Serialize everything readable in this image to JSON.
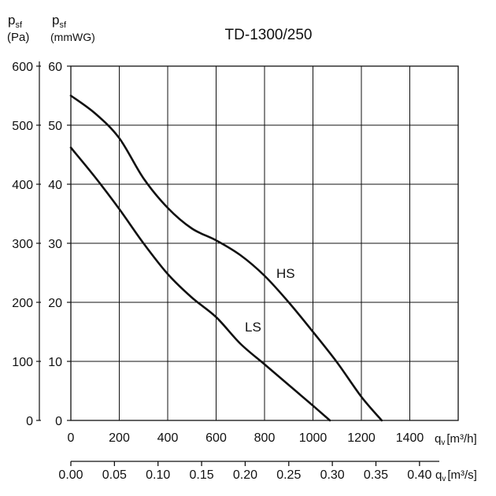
{
  "chart_data": {
    "type": "line",
    "title": "TD-1300/250",
    "y_axes": {
      "left_pa": {
        "label_main": "p",
        "label_sub": "sf",
        "unit": "(Pa)",
        "range": [
          0,
          600
        ],
        "ticks": [
          0,
          100,
          200,
          300,
          400,
          500,
          600
        ],
        "tick_labels": [
          "0",
          "100",
          "200",
          "300",
          "400",
          "500",
          "600"
        ]
      },
      "left_mmwg": {
        "label_main": "p",
        "label_sub": "sf",
        "unit": "(mmWG)",
        "range": [
          0,
          60
        ],
        "ticks": [
          0,
          10,
          20,
          30,
          40,
          50,
          60
        ],
        "tick_labels": [
          "0",
          "10",
          "20",
          "30",
          "40",
          "50",
          "60"
        ]
      }
    },
    "x_axes": {
      "primary": {
        "label_main": "q",
        "label_sub": "v",
        "unit": "[m³/h]",
        "range": [
          0,
          1600
        ],
        "ticks": [
          0,
          200,
          400,
          600,
          800,
          1000,
          1200,
          1400
        ],
        "tick_labels": [
          "0",
          "200",
          "400",
          "600",
          "800",
          "1000",
          "1200",
          "1400"
        ]
      },
      "secondary": {
        "label_main": "q",
        "label_sub": "v",
        "unit": "[m³/s]",
        "range": [
          0,
          0.4444
        ],
        "ticks": [
          0,
          0.05,
          0.1,
          0.15,
          0.2,
          0.25,
          0.3,
          0.35,
          0.4
        ],
        "tick_labels": [
          "0.00",
          "0.05",
          "0.10",
          "0.15",
          "0.20",
          "0.25",
          "0.30",
          "0.35",
          "0.40"
        ]
      }
    },
    "grid": true,
    "series": [
      {
        "name": "HS",
        "x_unit": "m3/h",
        "y_unit": "Pa",
        "x": [
          0,
          100,
          200,
          300,
          400,
          500,
          600,
          700,
          800,
          900,
          1000,
          1100,
          1200,
          1284
        ],
        "y": [
          550,
          520,
          478,
          410,
          360,
          325,
          305,
          280,
          245,
          200,
          150,
          98,
          40,
          0
        ]
      },
      {
        "name": "LS",
        "x_unit": "m3/h",
        "y_unit": "Pa",
        "x": [
          0,
          100,
          200,
          300,
          400,
          500,
          600,
          700,
          800,
          900,
          1000,
          1070
        ],
        "y": [
          462,
          412,
          358,
          300,
          248,
          208,
          175,
          130,
          95,
          60,
          25,
          0
        ]
      }
    ]
  }
}
